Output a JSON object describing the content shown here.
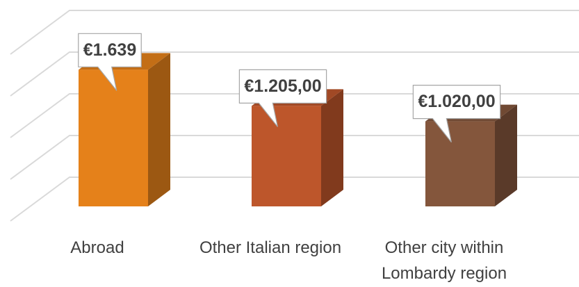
{
  "chart_data": {
    "type": "bar3d",
    "categories": [
      "Abroad",
      "Other Italian region",
      "Other city within Lombardy region"
    ],
    "values": [
      1639,
      1205,
      1020
    ],
    "value_labels": [
      "€1.639",
      "€1.205,00",
      "€1.020,00"
    ],
    "colors": [
      "#E5811A",
      "#BD562B",
      "#84563C"
    ],
    "ylim": [
      0,
      2000
    ],
    "yticks": [
      0,
      500,
      1000,
      1500,
      2000
    ],
    "grid": true
  }
}
